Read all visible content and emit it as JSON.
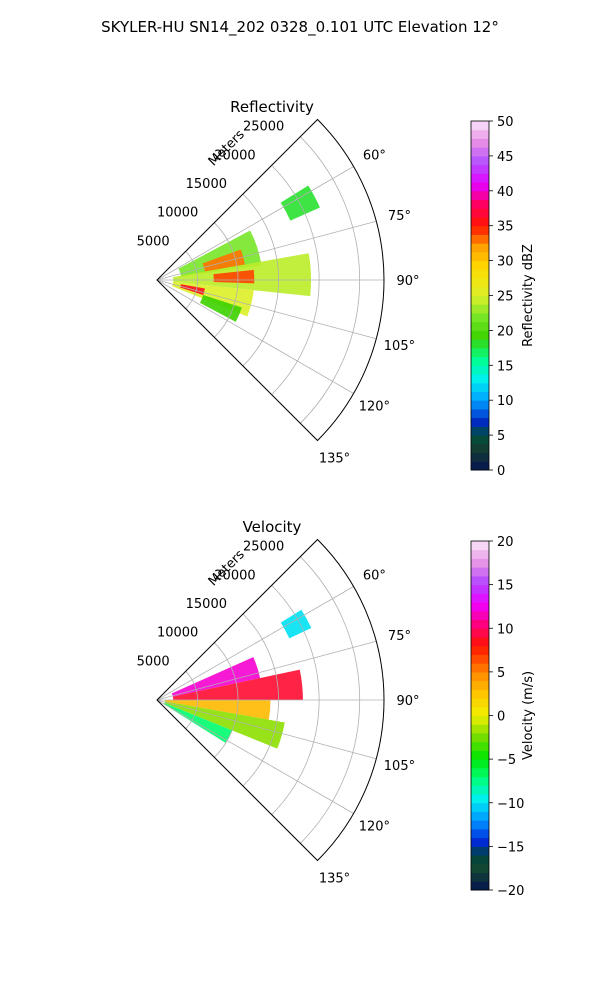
{
  "figure": {
    "title": "SKYLER-HU  SN14_202  0328_0.101 UTC Elevation 12°"
  },
  "chart_data": [
    {
      "type": "heatmap",
      "subtype": "polar-sector (PPI)",
      "title": "Reflectivity",
      "range_label": "Meters",
      "range_ticks": [
        5000,
        10000,
        15000,
        20000,
        25000
      ],
      "range_ticklabels": [
        "5000",
        "10000",
        "15000",
        "20000",
        "25000"
      ],
      "rlim": [
        0,
        28000
      ],
      "azimuth_ticks": [
        60,
        75,
        90,
        105,
        120,
        135
      ],
      "azimuth_ticklabels": [
        "60°",
        "75°",
        "90°",
        "105°",
        "120°",
        "135°"
      ],
      "azimuth_range": [
        45,
        135
      ],
      "grid": true,
      "colorbar": {
        "label": "Reflectivity dBZ",
        "vmin": 0,
        "vmax": 50,
        "ticks": [
          0,
          5,
          10,
          15,
          20,
          25,
          30,
          35,
          40,
          45,
          50
        ],
        "ticklabels": [
          "0",
          "5",
          "10",
          "15",
          "20",
          "25",
          "30",
          "35",
          "40",
          "45",
          "50"
        ]
      },
      "echo_regions": [
        {
          "az_from": 58,
          "az_to": 66,
          "r_from": 18000,
          "r_to": 22000,
          "value": 18
        },
        {
          "az_from": 62,
          "az_to": 82,
          "r_from": 3000,
          "r_to": 13000,
          "value": 22
        },
        {
          "az_from": 70,
          "az_to": 80,
          "r_from": 6000,
          "r_to": 11000,
          "value": 33
        },
        {
          "az_from": 80,
          "az_to": 96,
          "r_from": 2000,
          "r_to": 19000,
          "value": 24
        },
        {
          "az_from": 84,
          "az_to": 92,
          "r_from": 7000,
          "r_to": 12000,
          "value": 34
        },
        {
          "az_from": 96,
          "az_to": 112,
          "r_from": 2000,
          "r_to": 12000,
          "value": 25
        },
        {
          "az_from": 100,
          "az_to": 108,
          "r_from": 3000,
          "r_to": 6000,
          "value": 36
        },
        {
          "az_from": 108,
          "az_to": 118,
          "r_from": 6000,
          "r_to": 11000,
          "value": 19
        }
      ]
    },
    {
      "type": "heatmap",
      "subtype": "polar-sector (PPI)",
      "title": "Velocity",
      "range_label": "Meters",
      "range_ticks": [
        5000,
        10000,
        15000,
        20000,
        25000
      ],
      "range_ticklabels": [
        "5000",
        "10000",
        "15000",
        "20000",
        "25000"
      ],
      "rlim": [
        0,
        28000
      ],
      "azimuth_ticks": [
        60,
        75,
        90,
        105,
        120,
        135
      ],
      "azimuth_ticklabels": [
        "60°",
        "75°",
        "90°",
        "105°",
        "120°",
        "135°"
      ],
      "azimuth_range": [
        45,
        135
      ],
      "grid": true,
      "colorbar": {
        "label": "Velocity (m/s)",
        "vmin": -20,
        "vmax": 20,
        "ticks": [
          -20,
          -15,
          -10,
          -5,
          0,
          5,
          10,
          15,
          20
        ],
        "ticklabels": [
          "−20",
          "−15",
          "−10",
          "−5",
          "0",
          "5",
          "10",
          "15",
          "20"
        ]
      },
      "echo_regions": [
        {
          "az_from": 58,
          "az_to": 65,
          "r_from": 18000,
          "r_to": 21000,
          "value": -10
        },
        {
          "az_from": 66,
          "az_to": 78,
          "r_from": 2000,
          "r_to": 13000,
          "value": 12
        },
        {
          "az_from": 78,
          "az_to": 90,
          "r_from": 2000,
          "r_to": 18000,
          "value": 9
        },
        {
          "az_from": 90,
          "az_to": 100,
          "r_from": 1000,
          "r_to": 14000,
          "value": 3
        },
        {
          "az_from": 100,
          "az_to": 112,
          "r_from": 1000,
          "r_to": 16000,
          "value": -2
        },
        {
          "az_from": 112,
          "az_to": 122,
          "r_from": 1000,
          "r_to": 10000,
          "value": -7
        }
      ]
    }
  ]
}
